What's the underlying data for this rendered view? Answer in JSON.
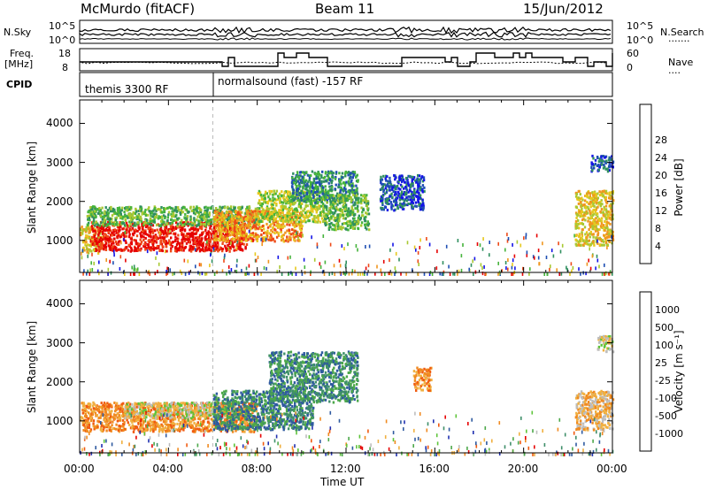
{
  "header": {
    "station": "McMurdo (fitACF)",
    "beam": "Beam 11",
    "date": "15/Jun/2012"
  },
  "summary": {
    "nsky_label": "N.Sky",
    "nsearch_label": "N.Search",
    "nsearch_dots": "·······",
    "freq_label_1": "Freq.",
    "freq_label_2": "[MHz]",
    "nave_label": "Nave",
    "nave_dots": "····",
    "cpid_label": "CPID",
    "noise_tick_top_left": "10^5",
    "noise_tick_bottom_left": "10^0",
    "noise_tick_top_right": "10^5",
    "noise_tick_bottom_right": "10^0",
    "freq_tick_top": "18",
    "freq_tick_bottom": "8",
    "nave_tick_top": "60",
    "nave_tick_bottom": "0",
    "cpid_modes": [
      "themis 3300 RF",
      "normalsound (fast) -157 RF"
    ]
  },
  "axes": {
    "x_label": "Time UT",
    "x_ticks": [
      "00:00",
      "04:00",
      "08:00",
      "12:00",
      "16:00",
      "20:00",
      "00:00"
    ],
    "y_label": "Slant Range [km]",
    "y_ticks": [
      "1000",
      "2000",
      "3000",
      "4000"
    ]
  },
  "power_colorbar": {
    "label": "Power [dB]",
    "ticks": [
      "4",
      "8",
      "12",
      "16",
      "20",
      "24",
      "28"
    ],
    "colors": [
      "#1414e6",
      "#1f4fb3",
      "#2f8f5f",
      "#46b43c",
      "#a8c832",
      "#e6c81e",
      "#f0961e",
      "#ee4a18",
      "#e60000"
    ]
  },
  "velocity_colorbar": {
    "label": "Velocity [m s⁻¹]",
    "ticks": [
      "1000",
      "500",
      "100",
      "25",
      "-25",
      "-100",
      "-500",
      "-1000"
    ],
    "colors": [
      "#2030b0",
      "#2f5aa0",
      "#3f8f6a",
      "#4ca84a",
      "#5ec43a",
      "#bdbdbd",
      "#f0b040",
      "#f08a20",
      "#f05a10",
      "#e60000"
    ]
  },
  "chart_data": [
    {
      "type": "heatmap",
      "panel": "power",
      "title": "",
      "xlabel": "",
      "ylabel": "Slant Range [km]",
      "xlim": [
        0,
        24
      ],
      "ylim": [
        180,
        4600
      ],
      "regions": [
        {
          "t0": 0.0,
          "t1": 1.0,
          "r0": 700,
          "r1": 1400,
          "level": 5
        },
        {
          "t0": 0.5,
          "t1": 7.5,
          "r0": 750,
          "r1": 1500,
          "level": 8
        },
        {
          "t0": 0.3,
          "t1": 8.0,
          "r0": 1400,
          "r1": 1900,
          "level": 3
        },
        {
          "t0": 6.0,
          "t1": 10.0,
          "r0": 1000,
          "r1": 1800,
          "level": 6
        },
        {
          "t0": 8.0,
          "t1": 11.0,
          "r0": 1500,
          "r1": 2300,
          "level": 4
        },
        {
          "t0": 9.5,
          "t1": 12.5,
          "r0": 2000,
          "r1": 2800,
          "level": 2
        },
        {
          "t0": 11.0,
          "t1": 13.0,
          "r0": 1300,
          "r1": 2200,
          "level": 3
        },
        {
          "t0": 13.5,
          "t1": 15.5,
          "r0": 1800,
          "r1": 2700,
          "level": 1
        },
        {
          "t0": 22.3,
          "t1": 24.0,
          "r0": 900,
          "r1": 2300,
          "level": 5
        },
        {
          "t0": 23.0,
          "t1": 24.0,
          "r0": 2800,
          "r1": 3200,
          "level": 1
        }
      ]
    },
    {
      "type": "heatmap",
      "panel": "velocity",
      "title": "",
      "xlabel": "Time UT",
      "ylabel": "Slant Range [km]",
      "xlim": [
        0,
        24
      ],
      "ylim": [
        180,
        4600
      ],
      "regions": [
        {
          "t0": 0.0,
          "t1": 8.0,
          "r0": 750,
          "r1": 1500,
          "level": 7
        },
        {
          "t0": 2.0,
          "t1": 7.0,
          "r0": 1100,
          "r1": 1500,
          "level": 5
        },
        {
          "t0": 6.0,
          "t1": 10.5,
          "r0": 800,
          "r1": 1800,
          "level": 2
        },
        {
          "t0": 8.5,
          "t1": 12.5,
          "r0": 1500,
          "r1": 2800,
          "level": 2
        },
        {
          "t0": 15.0,
          "t1": 15.8,
          "r0": 1800,
          "r1": 2400,
          "level": 7
        },
        {
          "t0": 22.3,
          "t1": 24.0,
          "r0": 800,
          "r1": 1800,
          "level": 6
        },
        {
          "t0": 23.3,
          "t1": 24.0,
          "r0": 2800,
          "r1": 3200,
          "level": 5
        }
      ]
    }
  ]
}
